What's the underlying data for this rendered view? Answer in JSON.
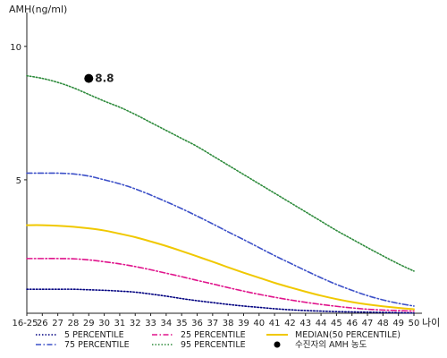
{
  "chart_data": {
    "type": "line",
    "ylabel": "AMH(ng/ml)",
    "xlabel": "나이",
    "x_tick_labels": [
      "16-25",
      "26",
      "27",
      "28",
      "29",
      "30",
      "31",
      "32",
      "33",
      "34",
      "35",
      "36",
      "37",
      "38",
      "39",
      "40",
      "41",
      "42",
      "43",
      "44",
      "45",
      "46",
      "47",
      "48",
      "49",
      "50"
    ],
    "y_tick_labels": [
      "5",
      "10"
    ],
    "ylim": [
      0,
      11
    ],
    "grid": false,
    "legend_position": "bottom",
    "series": [
      {
        "name": "5 PERCENTILE",
        "color": "#000080",
        "style": "dotted",
        "values": [
          0.9,
          0.9,
          0.9,
          0.9,
          0.88,
          0.86,
          0.83,
          0.79,
          0.72,
          0.64,
          0.55,
          0.47,
          0.4,
          0.33,
          0.27,
          0.22,
          0.17,
          0.13,
          0.1,
          0.08,
          0.06,
          0.05,
          0.04,
          0.03,
          0.02,
          0.01
        ]
      },
      {
        "name": "25 PERCENTILE",
        "color": "#e0148c",
        "style": "dashdot",
        "values": [
          2.05,
          2.05,
          2.05,
          2.04,
          2.0,
          1.93,
          1.85,
          1.75,
          1.63,
          1.5,
          1.37,
          1.23,
          1.1,
          0.96,
          0.83,
          0.71,
          0.6,
          0.5,
          0.41,
          0.33,
          0.26,
          0.2,
          0.15,
          0.12,
          0.1,
          0.08
        ]
      },
      {
        "name": "MEDIAN(50 PERCENTILE)",
        "color": "#f0c800",
        "style": "solid",
        "values": [
          3.3,
          3.3,
          3.28,
          3.24,
          3.18,
          3.1,
          2.98,
          2.85,
          2.69,
          2.52,
          2.33,
          2.13,
          1.93,
          1.72,
          1.52,
          1.33,
          1.14,
          0.97,
          0.81,
          0.66,
          0.53,
          0.42,
          0.33,
          0.26,
          0.2,
          0.15
        ]
      },
      {
        "name": "75 PERCENTILE",
        "color": "#3c50c8",
        "style": "dashdot",
        "values": [
          5.25,
          5.25,
          5.25,
          5.22,
          5.14,
          5.0,
          4.85,
          4.66,
          4.43,
          4.18,
          3.92,
          3.64,
          3.35,
          3.05,
          2.76,
          2.46,
          2.16,
          1.88,
          1.6,
          1.33,
          1.08,
          0.86,
          0.66,
          0.5,
          0.37,
          0.27
        ]
      },
      {
        "name": "95 PERCENTILE",
        "color": "#2e8b3c",
        "style": "dotted",
        "values": [
          8.9,
          8.8,
          8.65,
          8.45,
          8.2,
          7.95,
          7.72,
          7.45,
          7.15,
          6.85,
          6.55,
          6.25,
          5.9,
          5.55,
          5.2,
          4.85,
          4.5,
          4.15,
          3.8,
          3.45,
          3.1,
          2.78,
          2.46,
          2.15,
          1.85,
          1.58
        ]
      }
    ],
    "highlight": {
      "name": "수진자의 AMH 농도",
      "x": "29",
      "value": 8.8,
      "label": "8.8",
      "color": "#000000"
    }
  }
}
